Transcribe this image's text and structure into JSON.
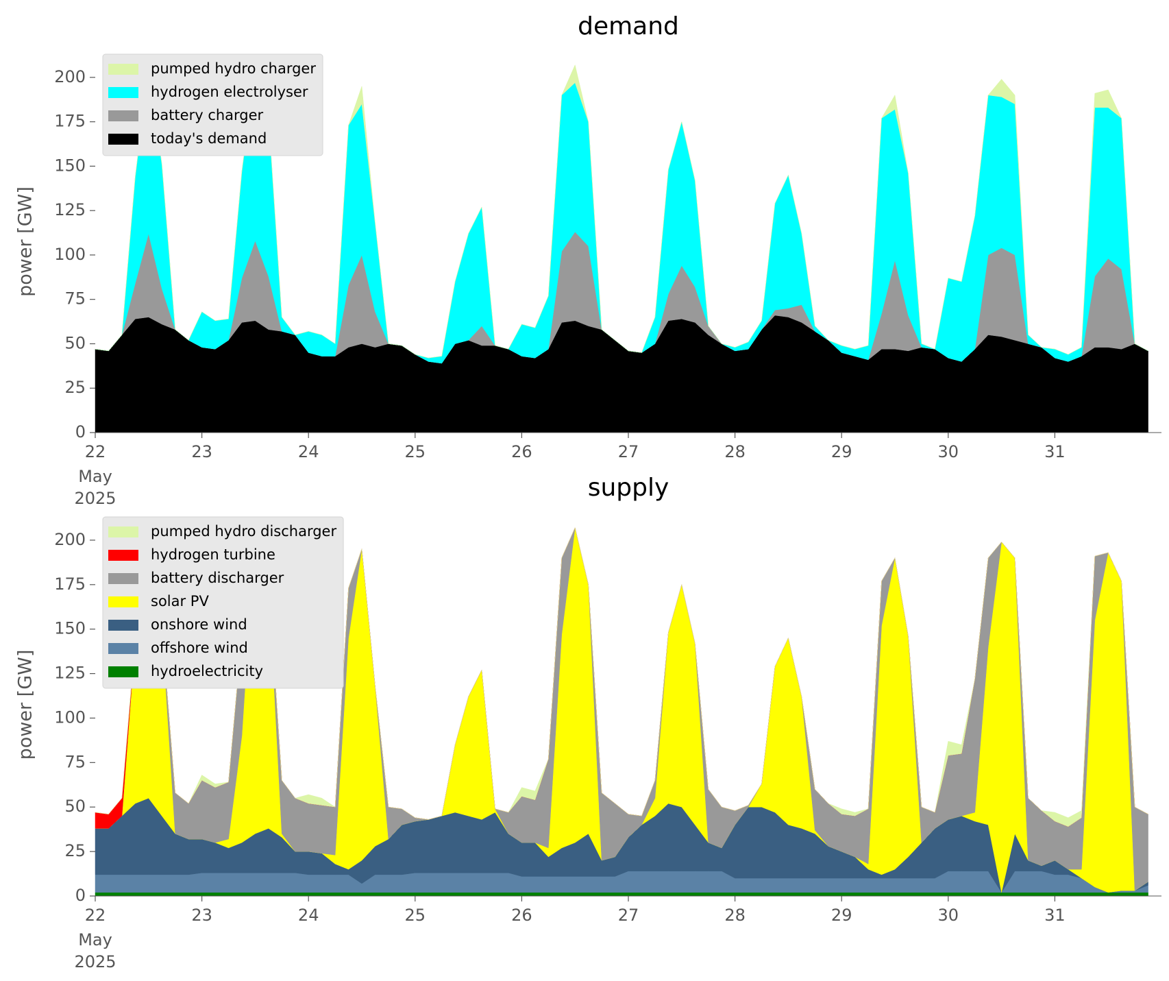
{
  "chart_data": [
    {
      "type": "stacked_area",
      "title": "demand",
      "y_label": "power [GW]",
      "x": [
        22,
        22.125,
        22.25,
        22.375,
        22.5,
        22.625,
        22.75,
        22.875,
        23,
        23.125,
        23.25,
        23.375,
        23.5,
        23.625,
        23.75,
        23.875,
        24,
        24.125,
        24.25,
        24.375,
        24.5,
        24.625,
        24.75,
        24.875,
        25,
        25.125,
        25.25,
        25.375,
        25.5,
        25.625,
        25.75,
        25.875,
        26,
        26.125,
        26.25,
        26.375,
        26.5,
        26.625,
        26.75,
        26.875,
        27,
        27.125,
        27.25,
        27.375,
        27.5,
        27.625,
        27.75,
        27.875,
        28,
        28.125,
        28.25,
        28.375,
        28.5,
        28.625,
        28.75,
        28.875,
        29,
        29.125,
        29.25,
        29.375,
        29.5,
        29.625,
        29.75,
        29.875,
        30,
        30.125,
        30.25,
        30.375,
        30.5,
        30.625,
        30.75,
        30.875,
        31,
        31.125,
        31.25,
        31.375,
        31.5,
        31.625,
        31.75,
        31.875
      ],
      "xlim": [
        22,
        32
      ],
      "xticks": [
        22,
        23,
        24,
        25,
        26,
        27,
        28,
        29,
        30,
        31
      ],
      "x_sublabels": [
        "May",
        "2025"
      ],
      "ylim": [
        0,
        215
      ],
      "yticks": [
        0,
        25,
        50,
        75,
        100,
        125,
        150,
        175,
        200
      ],
      "grid": false,
      "legend": "upper left",
      "series": [
        {
          "name": "today's demand",
          "color": "#000000",
          "values": [
            47,
            46,
            55,
            64,
            65,
            61,
            58,
            52,
            48,
            47,
            52,
            62,
            63,
            58,
            57,
            55,
            45,
            43,
            43,
            48,
            50,
            48,
            50,
            49,
            44,
            40,
            39,
            50,
            52,
            49,
            49,
            47,
            43,
            42,
            47,
            62,
            63,
            60,
            58,
            52,
            46,
            45,
            50,
            63,
            64,
            62,
            55,
            50,
            46,
            47,
            58,
            66,
            65,
            62,
            57,
            52,
            45,
            43,
            41,
            47,
            47,
            46,
            48,
            47,
            42,
            40,
            47,
            55,
            54,
            52,
            50,
            48,
            42,
            40,
            43,
            48,
            48,
            47,
            50,
            46
          ]
        },
        {
          "name": "battery charger",
          "color": "#999999",
          "values": [
            0,
            0,
            0,
            20,
            47,
            20,
            0,
            0,
            0,
            0,
            0,
            25,
            45,
            30,
            0,
            0,
            0,
            0,
            0,
            35,
            50,
            20,
            0,
            0,
            0,
            0,
            0,
            0,
            0,
            11,
            0,
            0,
            0,
            0,
            0,
            40,
            50,
            45,
            0,
            0,
            0,
            0,
            0,
            15,
            30,
            20,
            5,
            0,
            0,
            0,
            0,
            3,
            5,
            10,
            0,
            0,
            0,
            0,
            0,
            20,
            50,
            20,
            0,
            0,
            0,
            0,
            0,
            45,
            50,
            48,
            0,
            0,
            0,
            0,
            0,
            40,
            50,
            45,
            0,
            0
          ]
        },
        {
          "name": "hydrogen electrolyser",
          "color": "#00ffff",
          "values": [
            0,
            0,
            0,
            60,
            93,
            70,
            0,
            0,
            20,
            16,
            12,
            60,
            97,
            90,
            8,
            0,
            12,
            12,
            7,
            90,
            85,
            50,
            0,
            0,
            0,
            2,
            4,
            35,
            60,
            67,
            0,
            0,
            18,
            17,
            30,
            88,
            84,
            70,
            0,
            0,
            0,
            0,
            15,
            70,
            81,
            60,
            0,
            0,
            2,
            4,
            5,
            60,
            75,
            40,
            3,
            0,
            4,
            4,
            8,
            110,
            85,
            80,
            2,
            0,
            45,
            45,
            75,
            90,
            85,
            85,
            5,
            0,
            5,
            4,
            5,
            95,
            85,
            85,
            0,
            0
          ]
        },
        {
          "name": "pumped hydro charger",
          "color": "#dcf5a8",
          "values": [
            0,
            0,
            0,
            0,
            0,
            0,
            0,
            0,
            0,
            0,
            0,
            0,
            0,
            0,
            0,
            0,
            0,
            0,
            0,
            0,
            10,
            0,
            0,
            0,
            0,
            0,
            0,
            0,
            0,
            0,
            0,
            0,
            0,
            0,
            0,
            0,
            10,
            0,
            0,
            0,
            0,
            0,
            0,
            0,
            0,
            0,
            0,
            0,
            0,
            0,
            0,
            0,
            0,
            0,
            0,
            0,
            0,
            0,
            0,
            0,
            8,
            0,
            0,
            0,
            0,
            0,
            0,
            0,
            10,
            5,
            0,
            0,
            0,
            0,
            0,
            8,
            10,
            0,
            0,
            0
          ]
        }
      ]
    },
    {
      "type": "stacked_area",
      "title": "supply",
      "y_label": "power [GW]",
      "x": [
        22,
        22.125,
        22.25,
        22.375,
        22.5,
        22.625,
        22.75,
        22.875,
        23,
        23.125,
        23.25,
        23.375,
        23.5,
        23.625,
        23.75,
        23.875,
        24,
        24.125,
        24.25,
        24.375,
        24.5,
        24.625,
        24.75,
        24.875,
        25,
        25.125,
        25.25,
        25.375,
        25.5,
        25.625,
        25.75,
        25.875,
        26,
        26.125,
        26.25,
        26.375,
        26.5,
        26.625,
        26.75,
        26.875,
        27,
        27.125,
        27.25,
        27.375,
        27.5,
        27.625,
        27.75,
        27.875,
        28,
        28.125,
        28.25,
        28.375,
        28.5,
        28.625,
        28.75,
        28.875,
        29,
        29.125,
        29.25,
        29.375,
        29.5,
        29.625,
        29.75,
        29.875,
        30,
        30.125,
        30.25,
        30.375,
        30.5,
        30.625,
        30.75,
        30.875,
        31,
        31.125,
        31.25,
        31.375,
        31.5,
        31.625,
        31.75,
        31.875
      ],
      "xlim": [
        22,
        32
      ],
      "xticks": [
        22,
        23,
        24,
        25,
        26,
        27,
        28,
        29,
        30,
        31
      ],
      "x_sublabels": [
        "May",
        "2025"
      ],
      "ylim": [
        0,
        215
      ],
      "yticks": [
        0,
        25,
        50,
        75,
        100,
        125,
        150,
        175,
        200
      ],
      "grid": false,
      "legend": "upper left",
      "series": [
        {
          "name": "hydroelectricity",
          "color": "#008000",
          "values": [
            2,
            2,
            2,
            2,
            2,
            2,
            2,
            2,
            2,
            2,
            2,
            2,
            2,
            2,
            2,
            2,
            2,
            2,
            2,
            2,
            2,
            2,
            2,
            2,
            2,
            2,
            2,
            2,
            2,
            2,
            2,
            2,
            2,
            2,
            2,
            2,
            2,
            2,
            2,
            2,
            2,
            2,
            2,
            2,
            2,
            2,
            2,
            2,
            2,
            2,
            2,
            2,
            2,
            2,
            2,
            2,
            2,
            2,
            2,
            2,
            2,
            2,
            2,
            2,
            2,
            2,
            2,
            2,
            2,
            2,
            2,
            2,
            2,
            2,
            2,
            2,
            2,
            2,
            2,
            2
          ]
        },
        {
          "name": "offshore wind",
          "color": "#5b82a6",
          "values": [
            10,
            10,
            10,
            10,
            10,
            10,
            10,
            10,
            11,
            11,
            11,
            11,
            11,
            11,
            11,
            11,
            10,
            10,
            10,
            10,
            5,
            10,
            10,
            10,
            11,
            11,
            11,
            11,
            11,
            11,
            11,
            11,
            9,
            9,
            9,
            9,
            9,
            9,
            9,
            9,
            12,
            12,
            12,
            12,
            12,
            12,
            12,
            12,
            8,
            8,
            8,
            8,
            8,
            8,
            8,
            8,
            8,
            8,
            8,
            8,
            8,
            8,
            8,
            8,
            12,
            12,
            12,
            12,
            0,
            12,
            12,
            12,
            10,
            10,
            8,
            3,
            0,
            1,
            1,
            4
          ]
        },
        {
          "name": "onshore wind",
          "color": "#3a5f82",
          "values": [
            26,
            26,
            33,
            40,
            43,
            33,
            23,
            20,
            19,
            17,
            14,
            17,
            22,
            25,
            20,
            12,
            13,
            12,
            6,
            3,
            13,
            16,
            20,
            28,
            29,
            30,
            32,
            34,
            32,
            30,
            34,
            22,
            19,
            19,
            11,
            16,
            19,
            24,
            9,
            11,
            19,
            26,
            31,
            38,
            36,
            26,
            16,
            13,
            30,
            40,
            40,
            37,
            30,
            28,
            25,
            18,
            15,
            12,
            5,
            2,
            5,
            12,
            20,
            28,
            29,
            31,
            28,
            26,
            0,
            21,
            6,
            3,
            8,
            3,
            0,
            0,
            0,
            0,
            0,
            2
          ]
        },
        {
          "name": "solar PV",
          "color": "#ffff00",
          "values": [
            0,
            0,
            0,
            92,
            150,
            106,
            0,
            0,
            0,
            0,
            5,
            60,
            170,
            140,
            2,
            0,
            0,
            0,
            5,
            130,
            175,
            90,
            0,
            0,
            0,
            0,
            0,
            38,
            67,
            84,
            2,
            0,
            0,
            0,
            5,
            120,
            177,
            140,
            0,
            0,
            0,
            0,
            10,
            96,
            125,
            102,
            0,
            0,
            0,
            0,
            13,
            82,
            105,
            74,
            2,
            0,
            0,
            0,
            3,
            140,
            175,
            124,
            0,
            0,
            0,
            0,
            5,
            100,
            197,
            155,
            0,
            0,
            0,
            0,
            5,
            150,
            191,
            174,
            0,
            0
          ]
        },
        {
          "name": "battery discharger",
          "color": "#999999",
          "values": [
            0,
            0,
            0,
            0,
            0,
            0,
            23,
            20,
            33,
            31,
            32,
            57,
            0,
            0,
            30,
            30,
            27,
            27,
            27,
            28,
            0,
            0,
            18,
            9,
            2,
            0,
            0,
            0,
            0,
            0,
            0,
            12,
            26,
            24,
            50,
            43,
            0,
            0,
            38,
            30,
            13,
            5,
            10,
            0,
            0,
            0,
            30,
            23,
            8,
            1,
            0,
            0,
            0,
            0,
            23,
            24,
            21,
            23,
            31,
            25,
            0,
            0,
            20,
            9,
            36,
            35,
            75,
            50,
            0,
            0,
            35,
            31,
            22,
            24,
            29,
            36,
            0,
            0,
            47,
            38
          ]
        },
        {
          "name": "hydrogen turbine",
          "color": "#ff0000",
          "values": [
            9,
            8,
            10,
            0,
            0,
            0,
            0,
            0,
            0,
            0,
            0,
            0,
            0,
            0,
            0,
            0,
            0,
            0,
            0,
            0,
            0,
            0,
            0,
            0,
            0,
            0,
            0,
            0,
            0,
            0,
            0,
            0,
            0,
            0,
            0,
            0,
            0,
            0,
            0,
            0,
            0,
            0,
            0,
            0,
            0,
            0,
            0,
            0,
            0,
            0,
            0,
            0,
            0,
            0,
            0,
            0,
            0,
            0,
            0,
            0,
            0,
            0,
            0,
            0,
            0,
            0,
            0,
            0,
            0,
            0,
            0,
            0,
            0,
            0,
            0,
            0,
            0,
            0,
            0,
            0
          ]
        },
        {
          "name": "pumped hydro discharger",
          "color": "#dcf5a8",
          "values": [
            0,
            0,
            0,
            0,
            0,
            0,
            0,
            0,
            3,
            2,
            0,
            0,
            0,
            0,
            0,
            0,
            5,
            4,
            0,
            0,
            0,
            0,
            0,
            0,
            0,
            0,
            0,
            0,
            0,
            0,
            0,
            0,
            5,
            5,
            0,
            0,
            0,
            0,
            0,
            0,
            0,
            0,
            0,
            0,
            0,
            0,
            0,
            0,
            0,
            0,
            0,
            0,
            0,
            0,
            0,
            0,
            3,
            2,
            0,
            0,
            0,
            0,
            0,
            0,
            8,
            5,
            0,
            0,
            0,
            0,
            0,
            0,
            5,
            5,
            4,
            0,
            0,
            0,
            0,
            0
          ]
        }
      ]
    }
  ]
}
